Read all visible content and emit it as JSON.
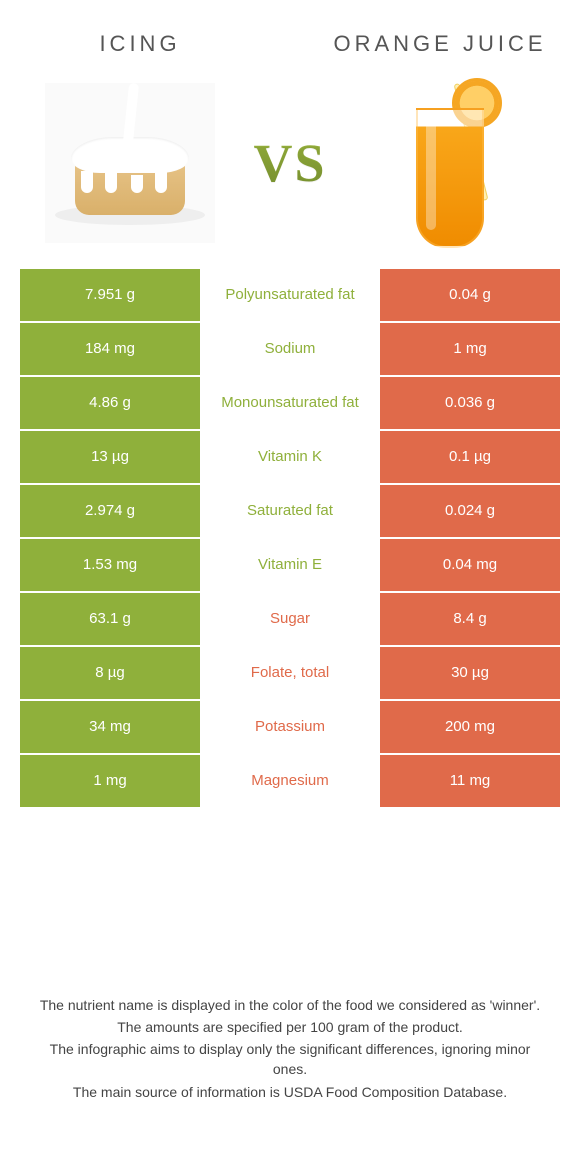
{
  "header": {
    "left_title": "Icing",
    "right_title": "Orange juice",
    "vs_label": "VS"
  },
  "colors": {
    "left": "#8fb03b",
    "right": "#e06a4a",
    "left_text": "#8fb03b",
    "right_text": "#e06a4a",
    "row_border": "#ffffff",
    "background": "#ffffff"
  },
  "table": {
    "rows": [
      {
        "left": "7.951 g",
        "label": "Polyunsaturated fat",
        "right": "0.04 g",
        "winner": "left"
      },
      {
        "left": "184 mg",
        "label": "Sodium",
        "right": "1 mg",
        "winner": "left"
      },
      {
        "left": "4.86 g",
        "label": "Monounsaturated fat",
        "right": "0.036 g",
        "winner": "left"
      },
      {
        "left": "13 µg",
        "label": "Vitamin K",
        "right": "0.1 µg",
        "winner": "left"
      },
      {
        "left": "2.974 g",
        "label": "Saturated fat",
        "right": "0.024 g",
        "winner": "left"
      },
      {
        "left": "1.53 mg",
        "label": "Vitamin E",
        "right": "0.04 mg",
        "winner": "left"
      },
      {
        "left": "63.1 g",
        "label": "Sugar",
        "right": "8.4 g",
        "winner": "right"
      },
      {
        "left": "8 µg",
        "label": "Folate, total",
        "right": "30 µg",
        "winner": "right"
      },
      {
        "left": "34 mg",
        "label": "Potassium",
        "right": "200 mg",
        "winner": "right"
      },
      {
        "left": "1 mg",
        "label": "Magnesium",
        "right": "11 mg",
        "winner": "right"
      }
    ]
  },
  "footnotes": {
    "line1": "The nutrient name is displayed in the color of the food we considered as 'winner'.",
    "line2": "The amounts are specified per 100 gram of the product.",
    "line3": "The infographic aims to display only the significant differences, ignoring minor ones.",
    "line4": "The main source of information is USDA Food Composition Database."
  }
}
